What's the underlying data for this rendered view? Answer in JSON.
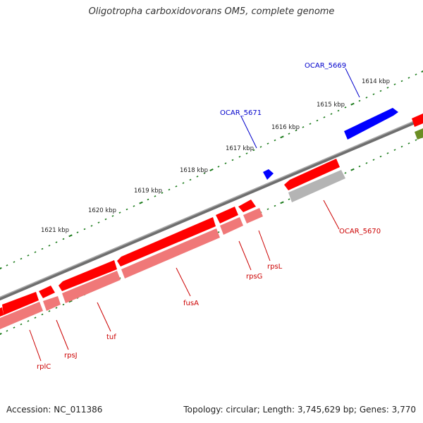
{
  "title": "Oligotropha carboxidovorans OM5, complete genome",
  "footer": {
    "accession": "Accession: NC_011386",
    "topology": "Topology: circular; Length: 3,745,629 bp; Genes: 3,770"
  },
  "colors": {
    "gene_red": "#ff0000",
    "gene_pink": "#f07878",
    "gene_blue": "#0000ff",
    "gene_grey": "#b4b4b4",
    "gene_olive": "#6b8e23",
    "label_red": "#cc0000",
    "label_blue": "#0000cc",
    "tick_green": "#1a7a1a",
    "backbone": "#7a7a7a"
  },
  "scale": {
    "labels": [
      "1614 kbp",
      "1615 kbp",
      "1616 kbp",
      "1617 kbp",
      "1618 kbp",
      "1619 kbp",
      "1620 kbp",
      "1621 kbp"
    ]
  },
  "genes": {
    "blue": [
      "OCAR_5669",
      "OCAR_5671"
    ],
    "red": [
      "OCAR_5670",
      "rpsL",
      "rpsG",
      "fusA",
      "tuf",
      "rpsJ",
      "rplC"
    ]
  }
}
